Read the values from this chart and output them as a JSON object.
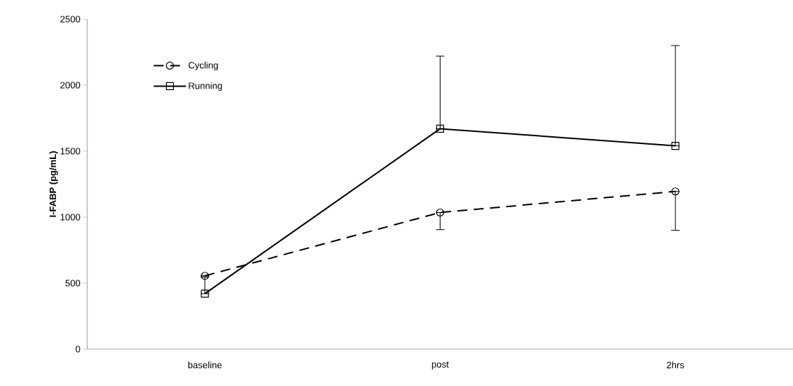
{
  "chart_data": {
    "type": "line",
    "ylabel": "I-FABP (pg/mL)",
    "categories": [
      "baseline",
      "post",
      "2hrs"
    ],
    "ylim": [
      0,
      2500
    ],
    "yticks": [
      0,
      500,
      1000,
      1500,
      2000,
      2500
    ],
    "grid": false,
    "legend": "top left",
    "series": [
      {
        "name": "Cycling",
        "color": "#000000",
        "marker": "circle",
        "line_style": "dashed",
        "values": [
          555,
          1035,
          1195
        ],
        "errors": [
          null,
          [
            905,
            1035
          ],
          [
            900,
            1195
          ]
        ]
      },
      {
        "name": "Running",
        "color": "#000000",
        "marker": "square",
        "line_style": "solid",
        "values": [
          420,
          1670,
          1540
        ],
        "errors": [
          [
            420,
            545
          ],
          [
            1670,
            2220
          ],
          [
            1540,
            2300
          ]
        ]
      }
    ]
  }
}
